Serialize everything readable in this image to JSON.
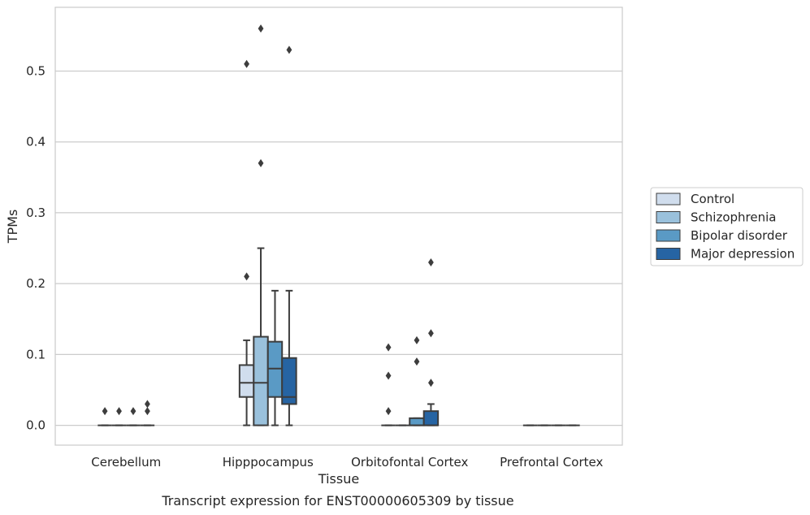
{
  "chart_data": {
    "type": "box",
    "xlabel": "Tissue",
    "ylabel": "TPMs",
    "caption": "Transcript expression for ENST00000605309 by tissue",
    "ylim": [
      -0.028,
      0.59
    ],
    "yticks": [
      "0.0",
      "0.1",
      "0.2",
      "0.3",
      "0.4",
      "0.5"
    ],
    "grid": true,
    "legend_position": "right",
    "categories": [
      "Cerebellum",
      "Hipppocampus",
      "Orbitofontal Cortex",
      "Prefrontal Cortex"
    ],
    "series": [
      {
        "name": "Control",
        "color": "#d0dded",
        "boxes": [
          {
            "q1": 0,
            "median": 0,
            "q3": 0,
            "whisker_low": 0,
            "whisker_high": 0,
            "outliers": [
              0.02
            ]
          },
          {
            "q1": 0.04,
            "median": 0.06,
            "q3": 0.085,
            "whisker_low": 0,
            "whisker_high": 0.12,
            "outliers": [
              0.21,
              0.51
            ]
          },
          {
            "q1": 0,
            "median": 0,
            "q3": 0,
            "whisker_low": 0,
            "whisker_high": 0,
            "outliers": [
              0.02,
              0.07,
              0.11
            ]
          },
          {
            "q1": 0,
            "median": 0,
            "q3": 0,
            "whisker_low": 0,
            "whisker_high": 0,
            "outliers": []
          }
        ]
      },
      {
        "name": "Schizophrenia",
        "color": "#9ac1dc",
        "boxes": [
          {
            "q1": 0,
            "median": 0,
            "q3": 0,
            "whisker_low": 0,
            "whisker_high": 0,
            "outliers": [
              0.02
            ]
          },
          {
            "q1": 0,
            "median": 0.06,
            "q3": 0.125,
            "whisker_low": 0,
            "whisker_high": 0.25,
            "outliers": [
              0.37,
              0.56
            ]
          },
          {
            "q1": 0,
            "median": 0,
            "q3": 0,
            "whisker_low": 0,
            "whisker_high": 0,
            "outliers": []
          },
          {
            "q1": 0,
            "median": 0,
            "q3": 0,
            "whisker_low": 0,
            "whisker_high": 0,
            "outliers": []
          }
        ]
      },
      {
        "name": "Bipolar disorder",
        "color": "#5a9ac5",
        "boxes": [
          {
            "q1": 0,
            "median": 0,
            "q3": 0,
            "whisker_low": 0,
            "whisker_high": 0,
            "outliers": [
              0.02
            ]
          },
          {
            "q1": 0.04,
            "median": 0.08,
            "q3": 0.118,
            "whisker_low": 0,
            "whisker_high": 0.19,
            "outliers": []
          },
          {
            "q1": 0,
            "median": 0,
            "q3": 0.01,
            "whisker_low": 0,
            "whisker_high": 0.01,
            "outliers": [
              0.09,
              0.12
            ]
          },
          {
            "q1": 0,
            "median": 0,
            "q3": 0,
            "whisker_low": 0,
            "whisker_high": 0,
            "outliers": []
          }
        ]
      },
      {
        "name": "Major depression",
        "color": "#2664a3",
        "boxes": [
          {
            "q1": 0,
            "median": 0,
            "q3": 0,
            "whisker_low": 0,
            "whisker_high": 0,
            "outliers": [
              0.02,
              0.03
            ]
          },
          {
            "q1": 0.03,
            "median": 0.04,
            "q3": 0.095,
            "whisker_low": 0,
            "whisker_high": 0.19,
            "outliers": [
              0.53
            ]
          },
          {
            "q1": 0,
            "median": 0,
            "q3": 0.02,
            "whisker_low": 0,
            "whisker_high": 0.03,
            "outliers": [
              0.06,
              0.13,
              0.23
            ]
          },
          {
            "q1": 0,
            "median": 0,
            "q3": 0,
            "whisker_low": 0,
            "whisker_high": 0,
            "outliers": []
          }
        ]
      }
    ]
  }
}
